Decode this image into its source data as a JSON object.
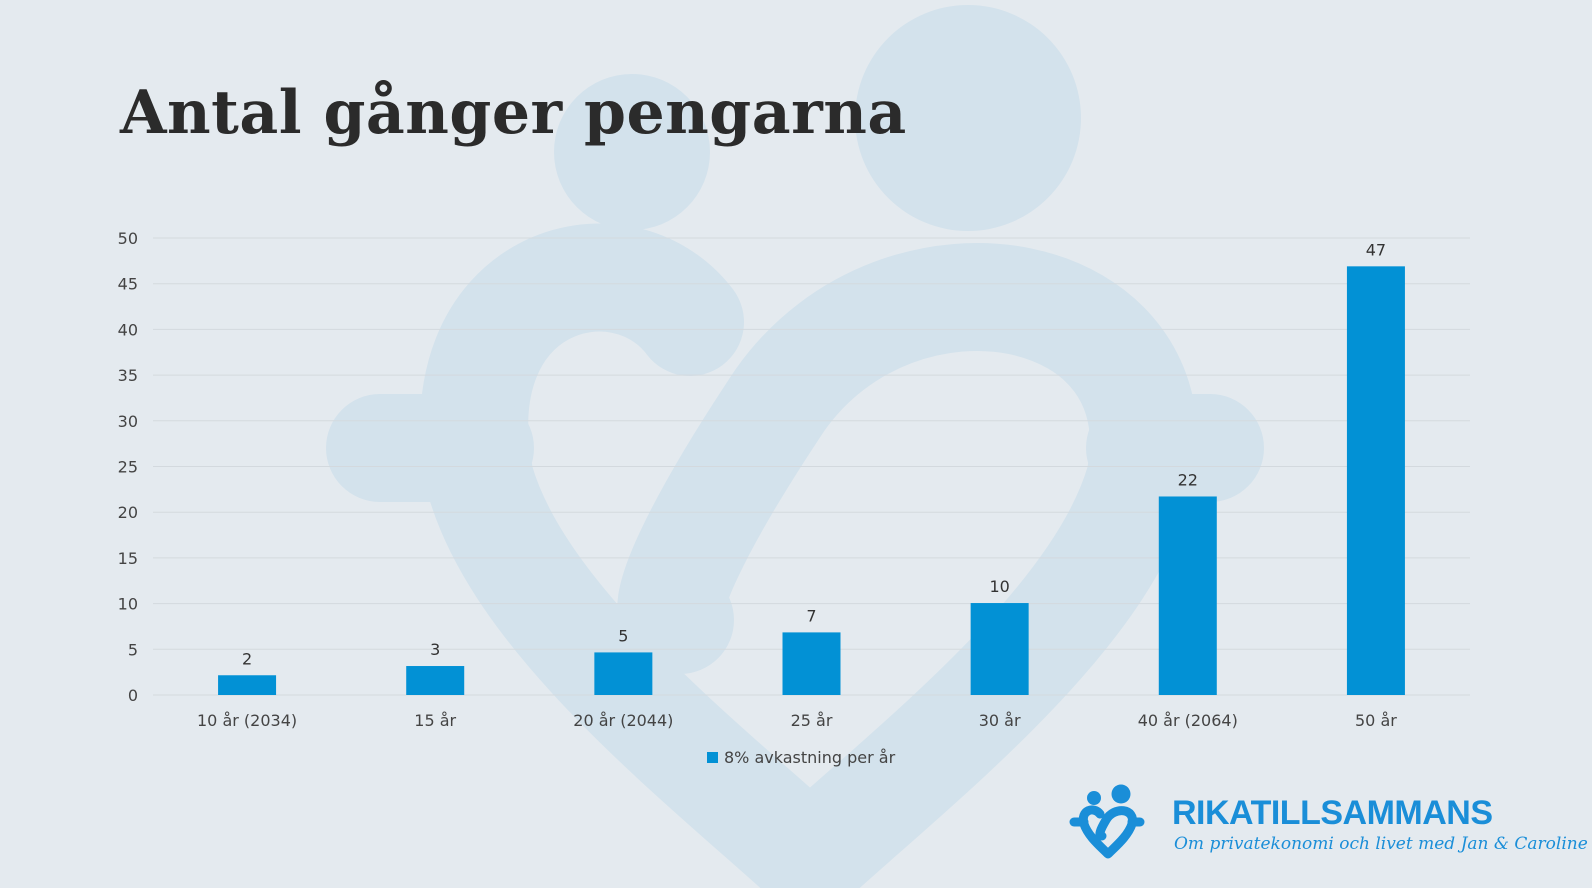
{
  "title": "Antal gånger pengarna",
  "colors": {
    "bar": "#0291d5",
    "grid": "#d3d9de",
    "brand": "#1a8ed8",
    "watermark": "#d3e2ec"
  },
  "chart_data": {
    "type": "bar",
    "categories": [
      "10 år (2034)",
      "15 år",
      "20 år (2044)",
      "25 år",
      "30 år",
      "40 år (2064)",
      "50 år"
    ],
    "series": [
      {
        "name": "8% avkastning per år",
        "values": [
          2.16,
          3.17,
          4.66,
          6.85,
          10.06,
          21.72,
          46.9
        ]
      }
    ],
    "data_labels": [
      "2",
      "3",
      "5",
      "7",
      "10",
      "22",
      "47"
    ],
    "ylim": [
      0,
      50
    ],
    "yticks": [
      0,
      5,
      10,
      15,
      20,
      25,
      30,
      35,
      40,
      45,
      50
    ],
    "grid": true,
    "legend_position": "bottom"
  },
  "logo": {
    "name": "RIKATILLSAMMANS",
    "tagline": "Om privatekonomi och livet med Jan & Caroline",
    "icon": "two-people-heart-icon"
  }
}
